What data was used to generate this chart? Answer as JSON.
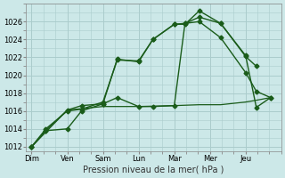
{
  "background_color": "#cce8e8",
  "grid_color": "#aacccc",
  "line_color": "#1a5c1a",
  "xlabel": "Pression niveau de la mer( hPa )",
  "ylim": [
    1011.5,
    1028.0
  ],
  "yticks": [
    1012,
    1014,
    1016,
    1018,
    1020,
    1022,
    1024,
    1026
  ],
  "xlim": [
    -0.15,
    7.0
  ],
  "xtick_positions": [
    0,
    1,
    2,
    3,
    4,
    5,
    6
  ],
  "day_labels": [
    "Dim",
    "Ven",
    "Sam",
    "Lun",
    "Mar",
    "Mer",
    "Jeu"
  ],
  "series": [
    {
      "x": [
        0,
        0.4,
        1.0,
        1.4,
        2.0,
        2.4,
        3.0,
        3.4,
        4.0,
        4.3,
        4.7,
        5.3,
        6.0,
        6.3
      ],
      "y": [
        1012.0,
        1013.8,
        1016.1,
        1016.6,
        1016.8,
        1021.8,
        1021.5,
        1024.0,
        1025.7,
        1025.7,
        1027.2,
        1025.8,
        1022.1,
        1021.0
      ],
      "marker": "D",
      "markersize": 2.5,
      "linewidth": 1.0
    },
    {
      "x": [
        0,
        0.4,
        1.0,
        1.4,
        2.0,
        2.4,
        3.0,
        3.4,
        4.0,
        4.3,
        4.7,
        5.3,
        6.0,
        6.3,
        6.7
      ],
      "y": [
        1012.0,
        1013.8,
        1014.0,
        1016.0,
        1016.8,
        1017.5,
        1016.5,
        1016.5,
        1016.6,
        1025.8,
        1026.0,
        1024.2,
        1020.3,
        1018.2,
        1017.5
      ],
      "marker": "D",
      "markersize": 2.5,
      "linewidth": 1.0
    },
    {
      "x": [
        0,
        1.0,
        2.0,
        3.0,
        4.0,
        4.7,
        5.3,
        6.0,
        6.3,
        6.7
      ],
      "y": [
        1012.0,
        1016.1,
        1016.5,
        1016.5,
        1016.6,
        1016.7,
        1016.7,
        1017.0,
        1017.2,
        1017.5
      ],
      "marker": null,
      "markersize": 0,
      "linewidth": 0.9
    },
    {
      "x": [
        0,
        0.4,
        1.0,
        1.4,
        2.0,
        2.4,
        3.0,
        3.4,
        4.0,
        4.3,
        4.7,
        5.3,
        6.0,
        6.3,
        6.7
      ],
      "y": [
        1012.0,
        1014.0,
        1016.0,
        1016.2,
        1017.0,
        1021.7,
        1021.6,
        1024.0,
        1025.7,
        1025.8,
        1026.5,
        1025.8,
        1022.2,
        1016.4,
        1017.5
      ],
      "marker": "D",
      "markersize": 2.5,
      "linewidth": 1.0
    }
  ]
}
